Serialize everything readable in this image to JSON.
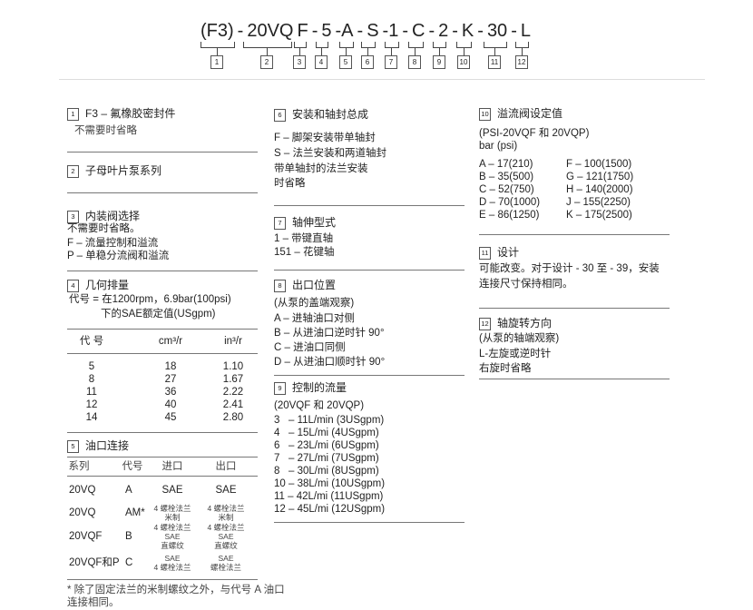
{
  "model_code": {
    "parts": [
      "(F3)",
      "-",
      "20VQ",
      "F",
      "-",
      "5",
      "-A",
      "-",
      "S",
      "-1",
      "-",
      "C",
      "-",
      "2",
      "-",
      "K",
      "-",
      "30",
      "-",
      "L"
    ],
    "numbers": [
      "1",
      "2",
      "3",
      "4",
      "5",
      "6",
      "7",
      "8",
      "9",
      "10",
      "11",
      "12"
    ]
  },
  "s1": {
    "num": "1",
    "title": "F3 – 氟橡胶密封件",
    "lines": [
      "不需要时省略"
    ]
  },
  "s2": {
    "num": "2",
    "title": "子母叶片泵系列"
  },
  "s3": {
    "num": "3",
    "title": "内装阀选择",
    "lines": [
      "不需要时省略。",
      "F – 流量控制和溢流",
      "P – 单稳分流阀和溢流"
    ]
  },
  "s4": {
    "num": "4",
    "title": "几何排量",
    "lines": [
      "代号 = 在1200rpm，6.9bar(100psi)",
      "下的SAE额定值(USgpm)"
    ],
    "table": {
      "headers": [
        "代 号",
        "cm³/r",
        "in³/r"
      ],
      "rows": [
        [
          "5",
          "18",
          "1.10"
        ],
        [
          "8",
          "27",
          "1.67"
        ],
        [
          "11",
          "36",
          "2.22"
        ],
        [
          "12",
          "40",
          "2.41"
        ],
        [
          "14",
          "45",
          "2.80"
        ]
      ]
    }
  },
  "s5": {
    "num": "5",
    "title": "油口连接",
    "headers": [
      "系列",
      "代号",
      "进口",
      "出口"
    ],
    "rows": [
      [
        "20VQ",
        "A",
        "SAE",
        "SAE"
      ],
      [
        "20VQ",
        "AM*",
        "4 螺栓法兰\n米制",
        "4 螺栓法兰\n米制"
      ],
      [
        "20VQF",
        "B",
        "4 螺栓法兰\nSAE\n直螺纹",
        "4 螺栓法兰\nSAE\n直螺纹"
      ],
      [
        "20VQF和P",
        "C",
        "SAE\n4 螺栓法兰",
        "SAE\n螺栓法兰"
      ]
    ],
    "footnote": [
      "* 除了固定法兰的米制螺纹之外，与代号 A 油口",
      "连接相同。"
    ]
  },
  "s6": {
    "num": "6",
    "title": "安装和轴封总成",
    "lines": [
      "F – 脚架安装带单轴封",
      "S – 法兰安装和两道轴封",
      "带单轴封的法兰安装",
      "时省略"
    ]
  },
  "s7": {
    "num": "7",
    "title": "轴伸型式",
    "lines": [
      "1 – 带键直轴",
      "151 – 花键轴"
    ]
  },
  "s8": {
    "num": "8",
    "title": "出口位置",
    "lines": [
      "(从泵的盖端观察)",
      "A – 进轴油口对侧",
      "B – 从进油口逆时针 90°",
      "C – 进油口同侧",
      "D – 从进油口顺时针 90°"
    ]
  },
  "s9": {
    "num": "9",
    "title": "控制的流量",
    "lines": [
      "(20VQF 和 20VQP)",
      "3   – 11L/min (3USgpm)",
      "4   – 15L/mi (4USgpm)",
      "6   – 23L/mi (6USgpm)",
      "7   – 27L/mi (7USgpm)",
      "8   – 30L/mi (8USgpm)",
      "10 – 38L/mi (10USgpm)",
      "11 – 42L/mi (11USgpm)",
      "12 – 45L/mi (12USgpm)"
    ]
  },
  "s10": {
    "num": "10",
    "title": "溢流阀设定值",
    "lines": [
      "(PSI-20VQF 和 20VQP)",
      "bar (psi)"
    ],
    "left": [
      "A – 17(210)",
      "B – 35(500)",
      "C – 52(750)",
      "D – 70(1000)",
      "E – 86(1250)"
    ],
    "right": [
      "F – 100(1500)",
      "G – 121(1750)",
      "H – 140(2000)",
      "J – 155(2250)",
      "K – 175(2500)"
    ]
  },
  "s11": {
    "num": "11",
    "title": "设计",
    "lines": [
      "可能改变。对于设计 - 30 至 - 39，安装",
      "连接尺寸保持相同。"
    ]
  },
  "s12": {
    "num": "12",
    "title": "轴旋转方向",
    "lines": [
      "(从泵的轴端观察)",
      "L-左旋或逆时针",
      "右旋时省略"
    ]
  }
}
